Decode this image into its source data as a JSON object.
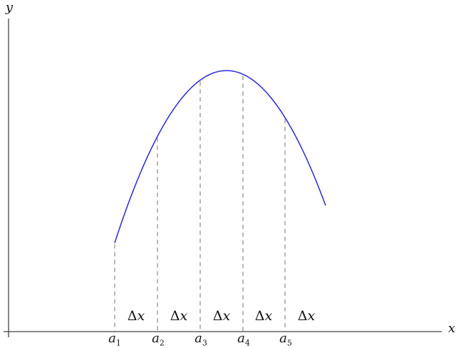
{
  "axes": {
    "x_label": "x",
    "y_label": "y"
  },
  "partition_points": [
    {
      "base": "a",
      "sub": "1"
    },
    {
      "base": "a",
      "sub": "2"
    },
    {
      "base": "a",
      "sub": "3"
    },
    {
      "base": "a",
      "sub": "4"
    },
    {
      "base": "a",
      "sub": "5"
    }
  ],
  "interval_labels": [
    {
      "delta": "Δ",
      "var": "x"
    },
    {
      "delta": "Δ",
      "var": "x"
    },
    {
      "delta": "Δ",
      "var": "x"
    },
    {
      "delta": "Δ",
      "var": "x"
    },
    {
      "delta": "Δ",
      "var": "x"
    }
  ],
  "colors": {
    "curve": "#2a2ad8",
    "axes": "#444444",
    "dashed": "#8a8a8a"
  }
}
